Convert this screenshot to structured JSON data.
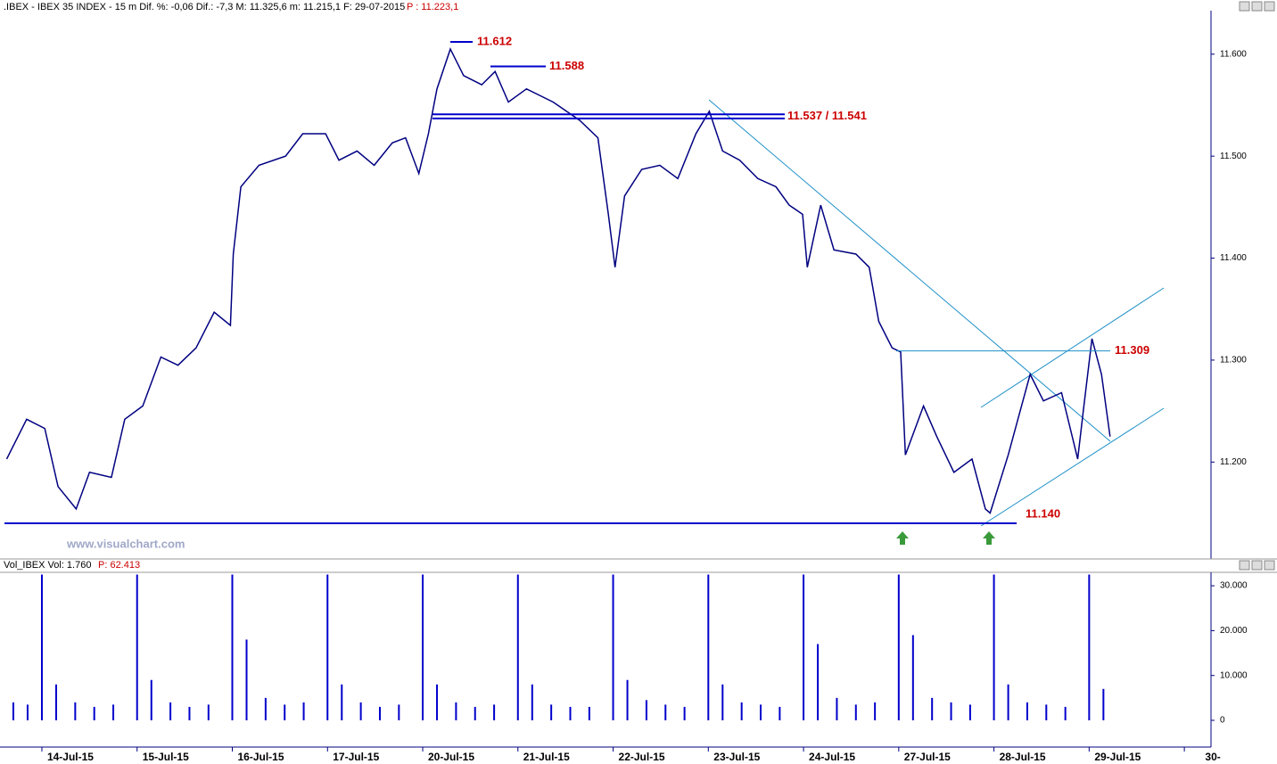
{
  "chart_data": [
    {
      "type": "line",
      "header": ".IBEX - IBEX 35 INDEX -  15 m  Dif. %: -0,06  Dif.: -7,3  M: 11.325,6  m: 11.215,1  F: 29-07-2015",
      "header_price": "P : 11.223,1",
      "watermark": "www.visualchart.com",
      "x": [
        -0.37,
        -0.16,
        0.03,
        0.17,
        0.36,
        0.5,
        0.73,
        0.87,
        1.06,
        1.25,
        1.43,
        1.62,
        1.81,
        1.98,
        2.01,
        2.09,
        2.28,
        2.56,
        2.74,
        2.98,
        3.12,
        3.31,
        3.49,
        3.68,
        3.82,
        3.96,
        4.06,
        4.15,
        4.29,
        4.43,
        4.62,
        4.76,
        4.9,
        5.09,
        5.37,
        5.65,
        5.84,
        5.95,
        6.02,
        6.12,
        6.3,
        6.49,
        6.68,
        6.87,
        7.01,
        7.15,
        7.33,
        7.52,
        7.71,
        7.85,
        7.99,
        8.04,
        8.18,
        8.32,
        8.55,
        8.69,
        8.79,
        8.93,
        9.02,
        9.07,
        9.26,
        9.4,
        9.58,
        9.77,
        9.91,
        9.96,
        10.15,
        10.29,
        10.38,
        10.52,
        10.71,
        10.88,
        10.94,
        11.03,
        11.13,
        11.22
      ],
      "series": [
        {
          "name": "IBEX",
          "color": "#000080",
          "values": [
            11203,
            11242,
            11233,
            11176,
            11154,
            11190,
            11185,
            11242,
            11255,
            11303,
            11295,
            11312,
            11347,
            11334,
            11404,
            11470,
            11491,
            11500,
            11522,
            11522,
            11496,
            11505,
            11491,
            11513,
            11518,
            11483,
            11522,
            11566,
            11605,
            11579,
            11570,
            11583,
            11553,
            11566,
            11553,
            11535,
            11518,
            11443,
            11391,
            11461,
            11487,
            11491,
            11478,
            11522,
            11544,
            11505,
            11496,
            11478,
            11470,
            11452,
            11443,
            11391,
            11452,
            11408,
            11404,
            11391,
            11338,
            11312,
            11308,
            11207,
            11255,
            11225,
            11190,
            11203,
            11154,
            11150,
            11207,
            11255,
            11286,
            11260,
            11268,
            11203,
            11251,
            11321,
            11286,
            11225
          ]
        }
      ],
      "xlim": [
        -0.44,
        12.28
      ],
      "ylim": [
        11105,
        11640
      ],
      "yticks": [
        {
          "value": 11200,
          "label": "11.200"
        },
        {
          "value": 11300,
          "label": "11.300"
        },
        {
          "value": 11400,
          "label": "11.400"
        },
        {
          "value": 11500,
          "label": "11.500"
        },
        {
          "value": 11600,
          "label": "11.600"
        }
      ],
      "annotations": [
        {
          "values": [
            11612
          ],
          "label": "11.612"
        },
        {
          "values": [
            11588
          ],
          "label": "11.588"
        },
        {
          "values": [
            11537,
            11541
          ],
          "label": "11.537 / 11.541"
        },
        {
          "values": [
            11309
          ],
          "label": "11.309"
        },
        {
          "values": [
            11140
          ],
          "label": "11.140"
        }
      ]
    },
    {
      "type": "bar",
      "header": "Vol_IBEX  Vol: 1.760",
      "header_price": "P: 62.413",
      "x": [
        -0.3,
        -0.15,
        0,
        0.15,
        0.35,
        0.55,
        0.75,
        1,
        1.15,
        1.35,
        1.55,
        1.75,
        2,
        2.15,
        2.35,
        2.55,
        2.75,
        3,
        3.15,
        3.35,
        3.55,
        3.75,
        4,
        4.15,
        4.35,
        4.55,
        4.75,
        5,
        5.15,
        5.35,
        5.55,
        5.75,
        6,
        6.15,
        6.35,
        6.55,
        6.75,
        7,
        7.15,
        7.35,
        7.55,
        7.75,
        8,
        8.15,
        8.35,
        8.55,
        8.75,
        9,
        9.15,
        9.35,
        9.55,
        9.75,
        10,
        10.15,
        10.35,
        10.55,
        10.75,
        11,
        11.15
      ],
      "series": [
        {
          "name": "Vol",
          "color": "#0000cc",
          "values": [
            4000,
            3500,
            32500,
            8000,
            4000,
            3000,
            3500,
            32500,
            9000,
            4000,
            3000,
            3500,
            32500,
            18000,
            5000,
            3500,
            4000,
            32500,
            8000,
            4000,
            3000,
            3500,
            32500,
            8000,
            4000,
            3000,
            3500,
            32500,
            8000,
            3500,
            3000,
            3000,
            32500,
            9000,
            4500,
            3500,
            3000,
            32500,
            8000,
            4000,
            3500,
            3000,
            32500,
            17000,
            5000,
            3500,
            4000,
            32500,
            19000,
            5000,
            4000,
            3500,
            32500,
            8000,
            4000,
            3500,
            3000,
            32500,
            7000
          ]
        }
      ],
      "xlim": [
        -0.44,
        12.28
      ],
      "ylim": [
        -4370,
        32400
      ],
      "yticks": [
        0,
        {
          "value": 10000,
          "label": "10.000"
        },
        {
          "value": 20000,
          "label": "20.000"
        },
        {
          "value": 30000,
          "label": "30.000"
        }
      ],
      "xticks": [
        {
          "value": 0,
          "label": "14-Jul-15"
        },
        {
          "value": 1,
          "label": "15-Jul-15"
        },
        {
          "value": 2,
          "label": "16-Jul-15"
        },
        {
          "value": 3,
          "label": "17-Jul-15"
        },
        {
          "value": 4,
          "label": "20-Jul-15"
        },
        {
          "value": 5,
          "label": "21-Jul-15"
        },
        {
          "value": 6,
          "label": "22-Jul-15"
        },
        {
          "value": 7,
          "label": "23-Jul-15"
        },
        {
          "value": 8,
          "label": "24-Jul-15"
        },
        {
          "value": 9,
          "label": "27-Jul-15"
        },
        {
          "value": 10,
          "label": "28-Jul-15"
        },
        {
          "value": 11,
          "label": "29-Jul-15"
        },
        {
          "value": 12,
          "label": "30-"
        }
      ]
    }
  ]
}
